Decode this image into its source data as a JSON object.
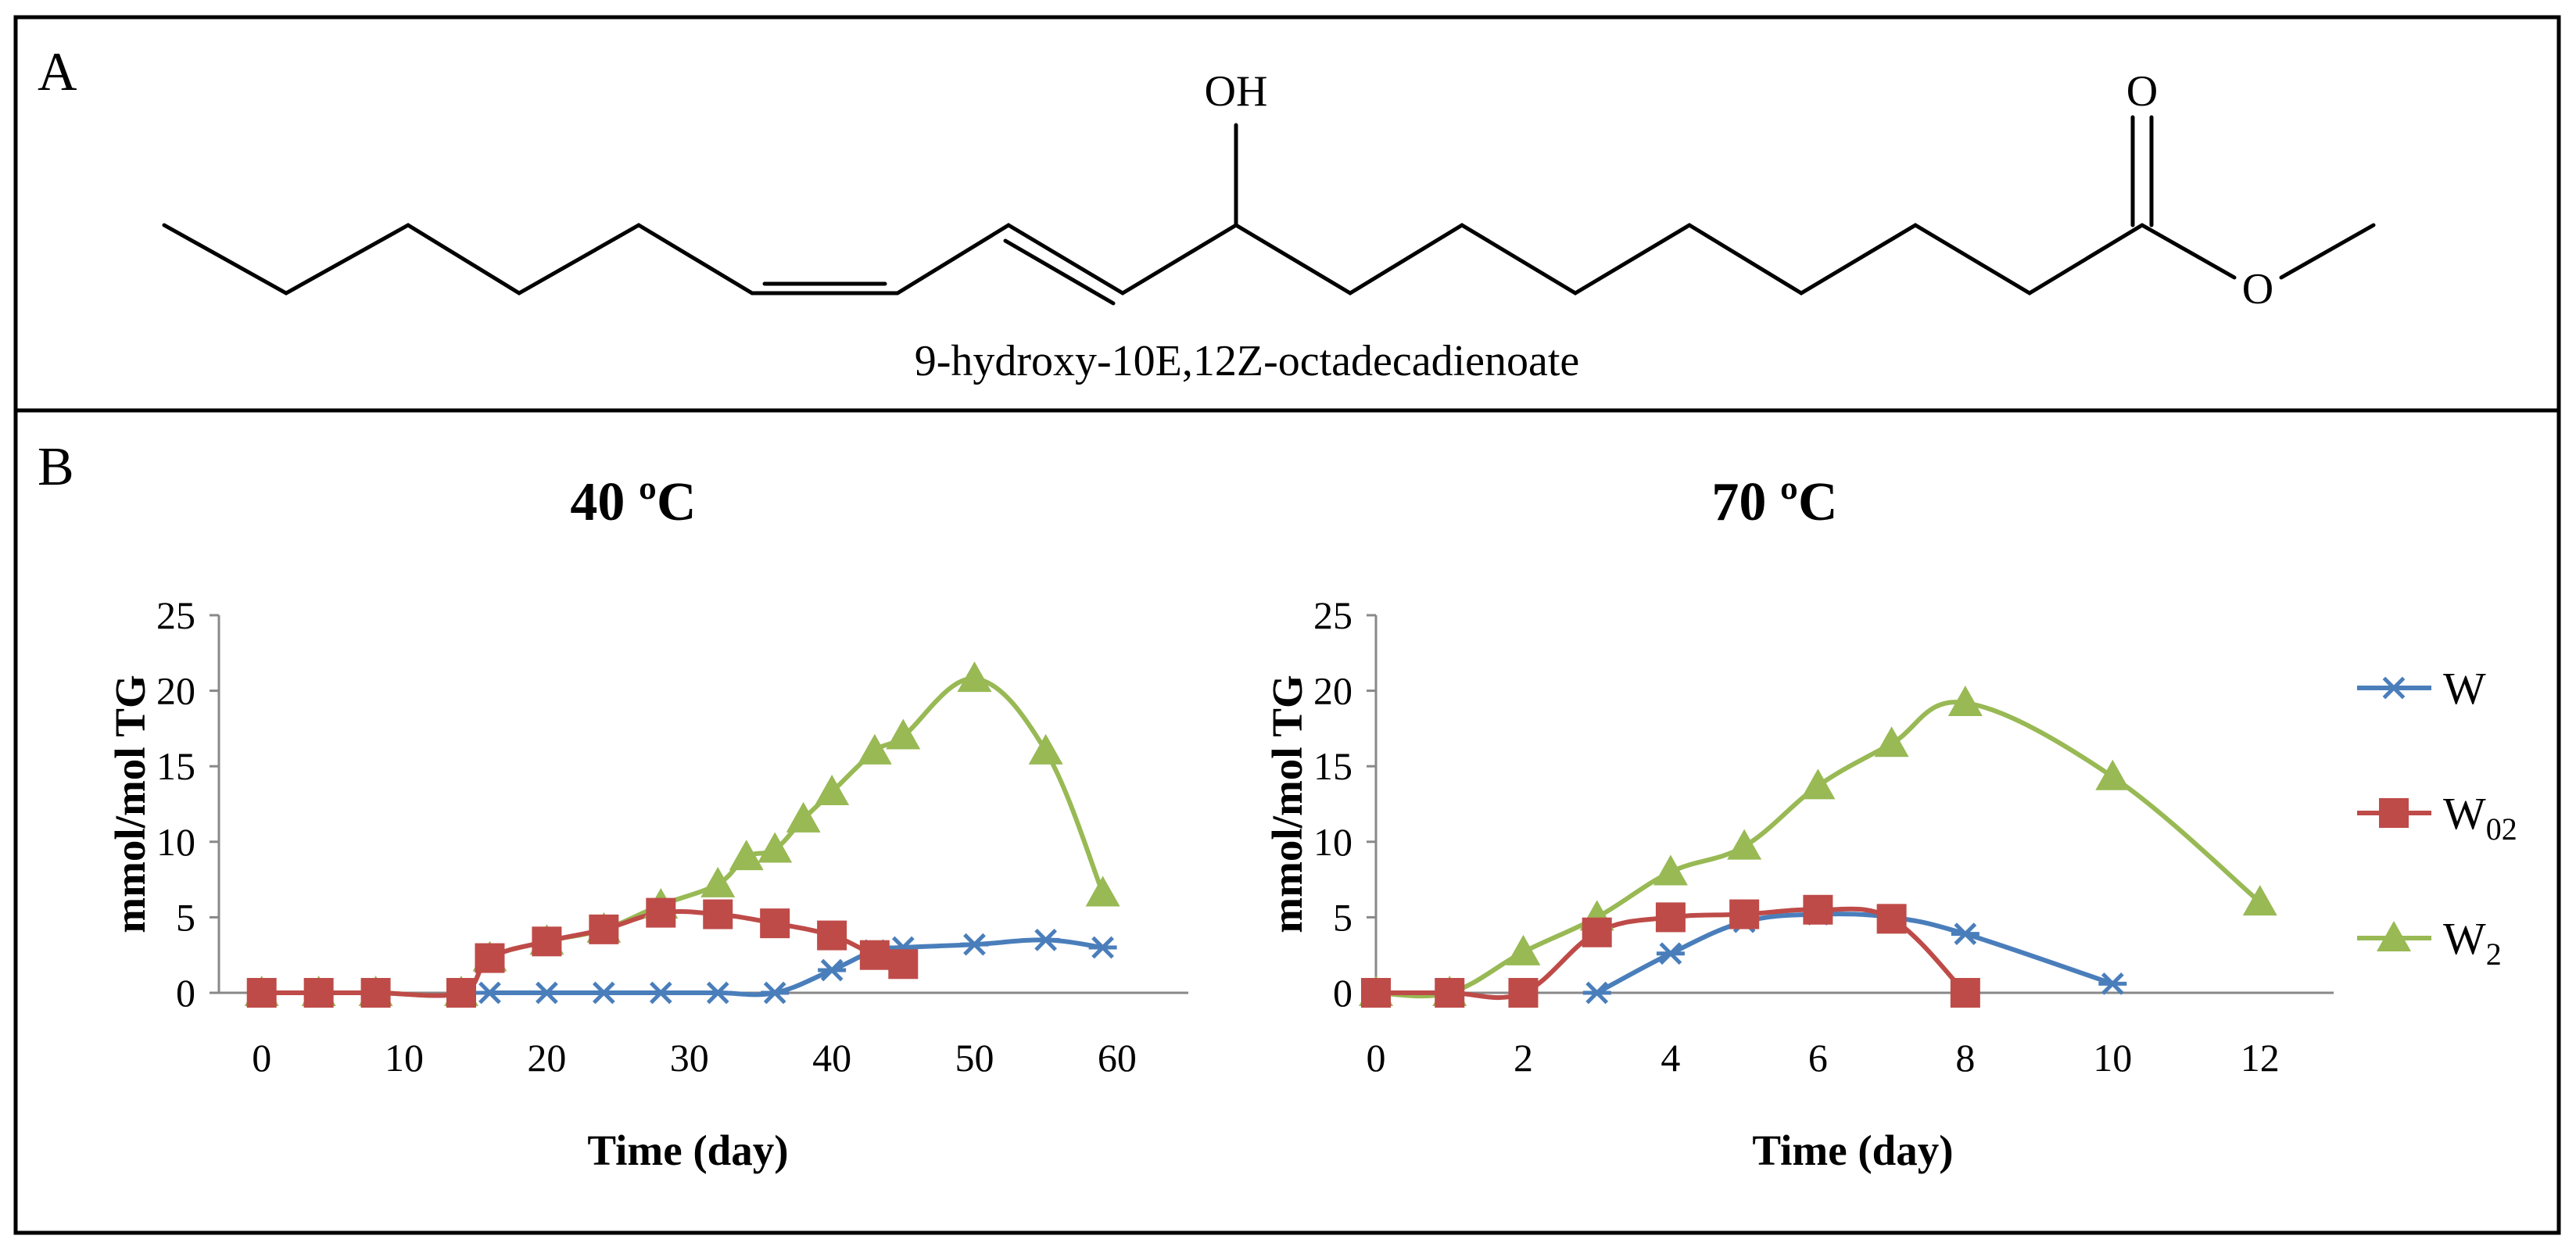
{
  "panel_a": {
    "letter": "A",
    "compound_name": "9-hydroxy-10E,12Z-octadecadienoate",
    "oh_label": "OH",
    "o_top_label": "O",
    "o_ester_label": "O"
  },
  "panel_b": {
    "letter": "B"
  },
  "legend": [
    {
      "name": "W",
      "base": "W",
      "sub": "",
      "color": "#4a7ebb",
      "marker": "star"
    },
    {
      "name": "W02",
      "base": "W",
      "sub": "02",
      "color": "#be4b48",
      "marker": "square"
    },
    {
      "name": "W2",
      "base": "W",
      "sub": "2",
      "color": "#98b954",
      "marker": "triangle"
    }
  ],
  "chart_data": [
    {
      "type": "line",
      "title": "40 ºC",
      "xlabel": "Time (day)",
      "ylabel": "mmol/mol TG",
      "xlim": [
        -3,
        65
      ],
      "ylim": [
        0,
        25
      ],
      "xticks": [
        0,
        10,
        20,
        30,
        40,
        50,
        60
      ],
      "yticks": [
        0,
        5,
        10,
        15,
        20,
        25
      ],
      "series": [
        {
          "name": "W",
          "color": "#4a7ebb",
          "marker": "star",
          "x": [
            16,
            20,
            24,
            28,
            32,
            36,
            40,
            43,
            45,
            50,
            55,
            59
          ],
          "y": [
            0,
            0,
            0,
            0,
            0,
            0,
            1.5,
            2.8,
            3.0,
            3.2,
            3.5,
            3.0
          ]
        },
        {
          "name": "W02",
          "color": "#be4b48",
          "marker": "square",
          "x": [
            0,
            4,
            8,
            14,
            16,
            20,
            24,
            28,
            32,
            36,
            40,
            43,
            45
          ],
          "y": [
            0,
            0,
            0,
            0,
            2.3,
            3.4,
            4.2,
            5.3,
            5.2,
            4.6,
            3.8,
            2.5,
            1.9
          ]
        },
        {
          "name": "W2",
          "color": "#98b954",
          "marker": "triangle",
          "x": [
            0,
            4,
            8,
            14,
            16,
            20,
            24,
            28,
            32,
            34,
            36,
            38,
            40,
            43,
            45,
            50,
            55,
            59
          ],
          "y": [
            0,
            0,
            0,
            0,
            2.3,
            3.4,
            4.2,
            5.8,
            7.2,
            9.0,
            9.5,
            11.5,
            13.3,
            16.0,
            17.0,
            20.8,
            16.0,
            6.6
          ]
        }
      ]
    },
    {
      "type": "line",
      "title": "70 ºC",
      "xlabel": "Time (day)",
      "ylabel": "mmol/mol TG",
      "xlim": [
        0,
        13
      ],
      "ylim": [
        0,
        25
      ],
      "xticks": [
        0,
        2,
        4,
        6,
        8,
        10,
        12
      ],
      "yticks": [
        0,
        5,
        10,
        15,
        20,
        25
      ],
      "series": [
        {
          "name": "W",
          "color": "#4a7ebb",
          "marker": "star",
          "x": [
            3,
            4,
            5,
            6,
            7,
            8,
            10
          ],
          "y": [
            0,
            2.6,
            4.7,
            5.2,
            5.0,
            3.9,
            0.6
          ]
        },
        {
          "name": "W02",
          "color": "#be4b48",
          "marker": "square",
          "x": [
            0,
            1,
            2,
            3,
            4,
            5,
            6,
            7,
            8
          ],
          "y": [
            0,
            0,
            0,
            4.0,
            5.0,
            5.2,
            5.5,
            4.9,
            0
          ]
        },
        {
          "name": "W2",
          "color": "#98b954",
          "marker": "triangle",
          "x": [
            0,
            1,
            2,
            3,
            4,
            5,
            6,
            7,
            8,
            10,
            12
          ],
          "y": [
            0,
            0,
            2.7,
            5.0,
            8.0,
            9.7,
            13.7,
            16.5,
            19.2,
            14.3,
            6.0
          ]
        }
      ]
    }
  ]
}
